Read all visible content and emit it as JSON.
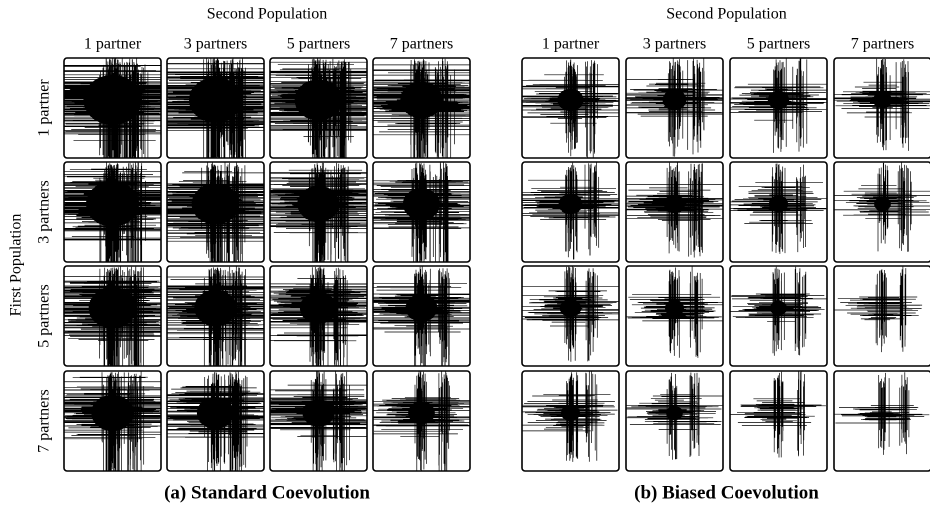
{
  "panels": [
    {
      "column_title": "Second Population",
      "column_labels": [
        "1 partner",
        "3 partners",
        "5 partners",
        "7 partners"
      ],
      "row_title": "First Population",
      "row_labels": [
        "1 partner",
        "3 partners",
        "5 partners",
        "7 partners"
      ],
      "caption": "(a) Standard Coevolution"
    },
    {
      "column_title": "Second Population",
      "column_labels": [
        "1 partner",
        "3 partners",
        "5 partners",
        "7 partners"
      ],
      "caption": "(b) Biased Coevolution"
    }
  ]
}
